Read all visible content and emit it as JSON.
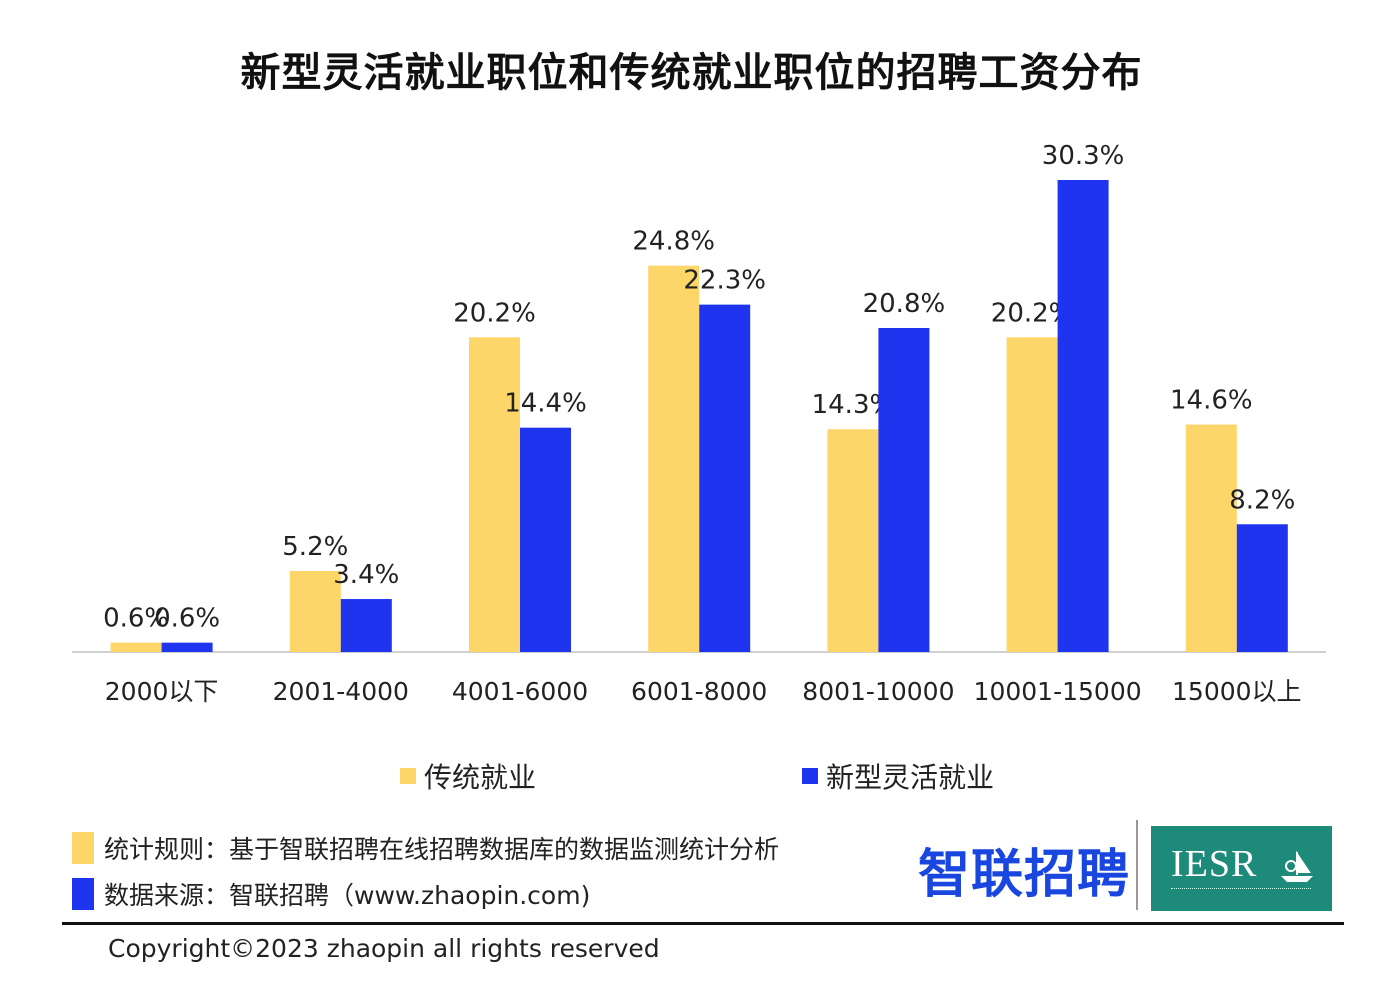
{
  "title": "新型灵活就业职位和传统就业职位的招聘工资分布",
  "colors": {
    "traditional": "#FDD66A",
    "flexible": "#1E34EF",
    "axis": "#d0d0d0"
  },
  "chart_data": {
    "type": "bar",
    "categories": [
      "2000以下",
      "2001-4000",
      "4001-6000",
      "6001-8000",
      "8001-10000",
      "10001-15000",
      "15000以上"
    ],
    "series": [
      {
        "name": "传统就业",
        "values": [
          0.6,
          5.2,
          20.2,
          24.8,
          14.3,
          20.2,
          14.6
        ],
        "labels": [
          "0.6%",
          "5.2%",
          "20.2%",
          "24.8%",
          "14.3%",
          "20.2%",
          "14.6%"
        ]
      },
      {
        "name": "新型灵活就业",
        "values": [
          0.6,
          3.4,
          14.4,
          22.3,
          20.8,
          30.3,
          8.2
        ],
        "labels": [
          "0.6%",
          "3.4%",
          "14.4%",
          "22.3%",
          "20.8%",
          "30.3%",
          "8.2%"
        ]
      }
    ],
    "ylim": [
      0,
      30.3
    ],
    "grid": false,
    "legend_position": "bottom"
  },
  "notes": {
    "rule_text": "统计规则：基于智联招聘在线招聘数据库的数据监测统计分析",
    "source_text": "数据来源：智联招聘（www.zhaopin.com)"
  },
  "logos": {
    "zhaopin": "智联招聘",
    "iesr": "IESR"
  },
  "copyright": "Copyright©2023 zhaopin all rights reserved"
}
